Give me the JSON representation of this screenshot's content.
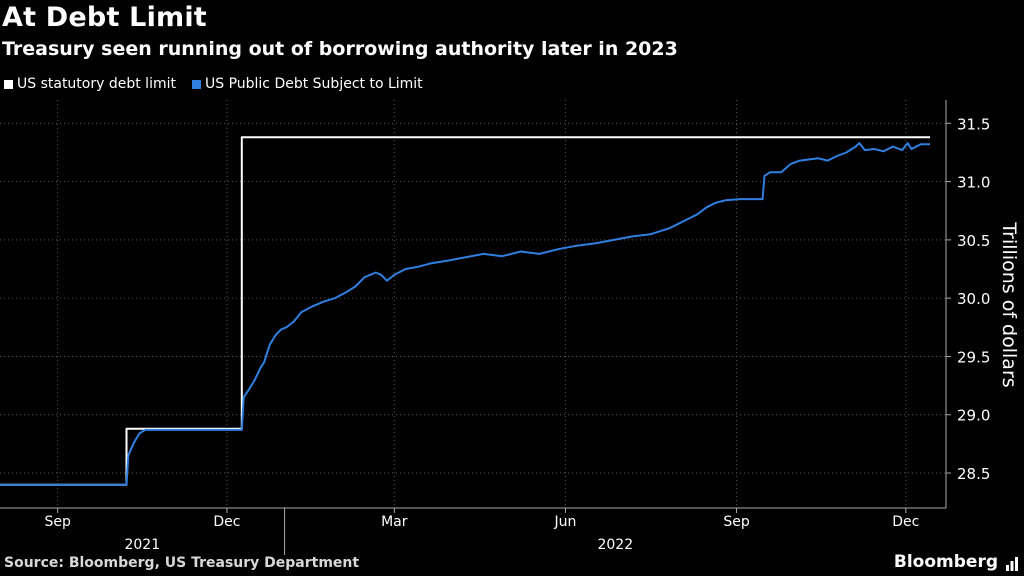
{
  "title": "At Debt Limit",
  "subtitle": "Treasury seen running out of borrowing authority later in 2023",
  "legend": {
    "series1": "US statutory debt limit",
    "series2": "US Public Debt Subject to Limit"
  },
  "source": "Source: Bloomberg, US Treasury Department",
  "brand": "Bloomberg",
  "colors": {
    "background": "#000000",
    "limit_line": "#ffffff",
    "debt_line": "#2f7fe0",
    "grid": "#555555",
    "axis_text": "#ffffff"
  },
  "chart_data": {
    "type": "line",
    "title": "At Debt Limit",
    "subtitle": "Treasury seen running out of borrowing authority later in 2023",
    "xlabel": "",
    "ylabel": "Trillions of dollars",
    "ylim": [
      28.2,
      31.7
    ],
    "yticks": [
      28.5,
      29.0,
      29.5,
      30.0,
      30.5,
      31.0,
      31.5
    ],
    "ytick_labels": [
      "28.5",
      "29.0",
      "29.5",
      "30.0",
      "30.5",
      "31.0",
      "31.5"
    ],
    "x_unit": "days since 2021-08-01",
    "xlim": [
      0,
      500
    ],
    "xticks": [
      {
        "x": 31,
        "label": "Sep"
      },
      {
        "x": 122,
        "label": "Dec"
      },
      {
        "x": 212,
        "label": "Mar"
      },
      {
        "x": 304,
        "label": "Jun"
      },
      {
        "x": 396,
        "label": "Sep"
      },
      {
        "x": 487,
        "label": "Dec"
      }
    ],
    "year_labels": [
      {
        "label": "2021",
        "from": 0,
        "to": 153
      },
      {
        "label": "2022",
        "from": 153,
        "to": 518
      }
    ],
    "year_divider_x": 153,
    "grid": true,
    "legend_position": "top-left",
    "series": [
      {
        "name": "US statutory debt limit",
        "points": [
          [
            0,
            28.4
          ],
          [
            68,
            28.4
          ],
          [
            68,
            28.88
          ],
          [
            130,
            28.88
          ],
          [
            130,
            31.38
          ],
          [
            500,
            31.38
          ]
        ]
      },
      {
        "name": "US Public Debt Subject to Limit",
        "points": [
          [
            0,
            28.4
          ],
          [
            68,
            28.4
          ],
          [
            69,
            28.65
          ],
          [
            72,
            28.76
          ],
          [
            75,
            28.84
          ],
          [
            78,
            28.87
          ],
          [
            130,
            28.87
          ],
          [
            131,
            29.15
          ],
          [
            134,
            29.22
          ],
          [
            137,
            29.3
          ],
          [
            140,
            29.4
          ],
          [
            142,
            29.45
          ],
          [
            145,
            29.6
          ],
          [
            148,
            29.68
          ],
          [
            151,
            29.73
          ],
          [
            154,
            29.75
          ],
          [
            158,
            29.8
          ],
          [
            162,
            29.88
          ],
          [
            168,
            29.93
          ],
          [
            174,
            29.97
          ],
          [
            180,
            30.0
          ],
          [
            186,
            30.05
          ],
          [
            191,
            30.1
          ],
          [
            196,
            30.18
          ],
          [
            199,
            30.2
          ],
          [
            202,
            30.22
          ],
          [
            205,
            30.2
          ],
          [
            208,
            30.15
          ],
          [
            212,
            30.2
          ],
          [
            218,
            30.25
          ],
          [
            225,
            30.27
          ],
          [
            232,
            30.3
          ],
          [
            240,
            30.32
          ],
          [
            250,
            30.35
          ],
          [
            260,
            30.38
          ],
          [
            270,
            30.36
          ],
          [
            280,
            30.4
          ],
          [
            290,
            30.38
          ],
          [
            300,
            30.42
          ],
          [
            310,
            30.45
          ],
          [
            320,
            30.47
          ],
          [
            330,
            30.5
          ],
          [
            340,
            30.53
          ],
          [
            350,
            30.55
          ],
          [
            360,
            30.6
          ],
          [
            370,
            30.68
          ],
          [
            375,
            30.72
          ],
          [
            380,
            30.78
          ],
          [
            385,
            30.82
          ],
          [
            390,
            30.84
          ],
          [
            398,
            30.85
          ],
          [
            406,
            30.85
          ],
          [
            410,
            30.85
          ],
          [
            411,
            31.05
          ],
          [
            414,
            31.08
          ],
          [
            420,
            31.08
          ],
          [
            425,
            31.15
          ],
          [
            430,
            31.18
          ],
          [
            440,
            31.2
          ],
          [
            445,
            31.18
          ],
          [
            450,
            31.22
          ],
          [
            455,
            31.25
          ],
          [
            460,
            31.3
          ],
          [
            462,
            31.33
          ],
          [
            465,
            31.27
          ],
          [
            470,
            31.28
          ],
          [
            475,
            31.26
          ],
          [
            480,
            31.3
          ],
          [
            485,
            31.27
          ],
          [
            488,
            31.33
          ],
          [
            490,
            31.28
          ],
          [
            495,
            31.32
          ],
          [
            500,
            31.32
          ]
        ]
      }
    ]
  }
}
